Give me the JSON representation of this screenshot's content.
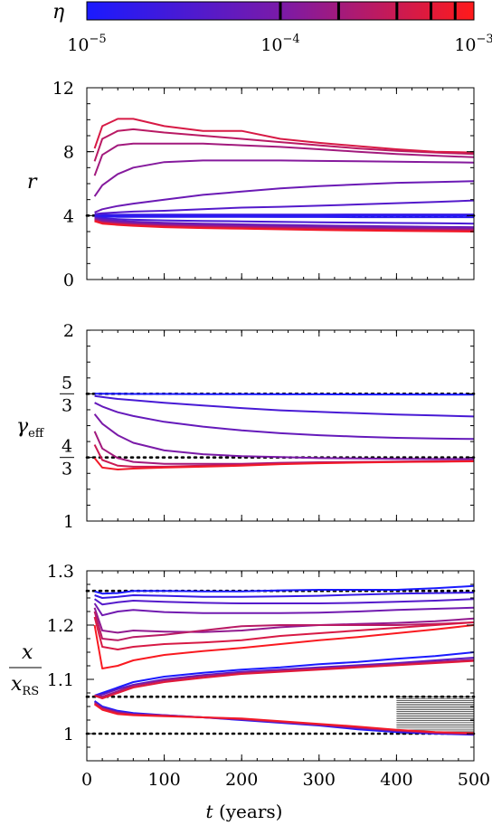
{
  "colorbar": {
    "symbol": "η",
    "scale": "log",
    "range": [
      1e-05,
      0.001
    ],
    "tick_marks": [
      0.0001,
      0.0002,
      0.0004,
      0.0006,
      0.0008
    ],
    "tick_labels": [
      {
        "base": "10",
        "exp": "−5",
        "value": 1e-05
      },
      {
        "base": "10",
        "exp": "−4",
        "value": 0.0001
      },
      {
        "base": "10",
        "exp": "−3",
        "value": 0.001
      }
    ],
    "color_low": "#1a1aff",
    "color_mid": "#7a1aa8",
    "color_high": "#ff1a1a"
  },
  "xaxis": {
    "label_var": "t",
    "label_unit": "(years)",
    "range": [
      0,
      500
    ],
    "ticks": [
      0,
      100,
      200,
      300,
      400,
      500
    ]
  },
  "chart_data": [
    {
      "type": "line",
      "id": "r",
      "ylabel": "r",
      "ylim": [
        0,
        12
      ],
      "yticks": [
        {
          "value": 0,
          "label": "0"
        },
        {
          "value": 4,
          "label": "4"
        },
        {
          "value": 8,
          "label": "8"
        },
        {
          "value": 12,
          "label": "12"
        }
      ],
      "reference_lines": [
        4
      ],
      "x": [
        10,
        20,
        40,
        60,
        100,
        150,
        200,
        250,
        300,
        350,
        400,
        450,
        500
      ],
      "series": [
        {
          "eta": 1e-05,
          "values": [
            4.0,
            4.0,
            4.0,
            4.0,
            4.0,
            4.0,
            4.0,
            4.0,
            4.0,
            4.0,
            4.0,
            4.0,
            4.0
          ]
        },
        {
          "eta": 2e-05,
          "values": [
            4.02,
            4.05,
            4.05,
            4.06,
            4.06,
            4.06,
            4.06,
            4.06,
            4.06,
            4.07,
            4.07,
            4.07,
            4.07
          ]
        },
        {
          "eta": 4e-05,
          "values": [
            4.1,
            4.15,
            4.2,
            4.25,
            4.3,
            4.4,
            4.5,
            4.55,
            4.62,
            4.7,
            4.78,
            4.85,
            4.95
          ]
        },
        {
          "eta": 7e-05,
          "values": [
            4.2,
            4.4,
            4.6,
            4.75,
            5.0,
            5.3,
            5.5,
            5.7,
            5.85,
            5.95,
            6.05,
            6.1,
            6.15
          ]
        },
        {
          "eta": 0.00012,
          "values": [
            5.2,
            5.9,
            6.6,
            7.0,
            7.35,
            7.45,
            7.45,
            7.45,
            7.42,
            7.4,
            7.37,
            7.35,
            7.32
          ]
        },
        {
          "eta": 0.0002,
          "values": [
            6.5,
            7.8,
            8.4,
            8.5,
            8.5,
            8.5,
            8.4,
            8.3,
            8.15,
            8.0,
            7.85,
            7.75,
            7.65
          ]
        },
        {
          "eta": 0.0003,
          "values": [
            7.4,
            8.8,
            9.3,
            9.4,
            9.2,
            9.0,
            8.8,
            8.6,
            8.4,
            8.2,
            8.05,
            7.95,
            7.85
          ]
        },
        {
          "eta": 0.0005,
          "values": [
            8.2,
            9.6,
            10.05,
            10.05,
            9.6,
            9.3,
            9.3,
            8.8,
            8.55,
            8.35,
            8.15,
            8.0,
            7.95
          ]
        },
        {
          "eta": 1.5e-05,
          "values": [
            3.95,
            3.93,
            3.92,
            3.92,
            3.92,
            3.92,
            3.92,
            3.91,
            3.91,
            3.9,
            3.9,
            3.9,
            3.9
          ]
        },
        {
          "eta": 3e-05,
          "values": [
            3.9,
            3.83,
            3.78,
            3.74,
            3.7,
            3.67,
            3.64,
            3.61,
            3.58,
            3.56,
            3.54,
            3.52,
            3.5
          ]
        },
        {
          "eta": 6e-05,
          "values": [
            3.85,
            3.75,
            3.68,
            3.62,
            3.55,
            3.5,
            3.45,
            3.42,
            3.38,
            3.35,
            3.32,
            3.3,
            3.28
          ]
        },
        {
          "eta": 0.0001,
          "values": [
            3.8,
            3.68,
            3.6,
            3.53,
            3.46,
            3.41,
            3.37,
            3.33,
            3.3,
            3.27,
            3.24,
            3.22,
            3.2
          ]
        },
        {
          "eta": 0.0002,
          "values": [
            3.75,
            3.6,
            3.52,
            3.46,
            3.38,
            3.33,
            3.29,
            3.25,
            3.22,
            3.19,
            3.16,
            3.14,
            3.12
          ]
        },
        {
          "eta": 0.0004,
          "values": [
            3.7,
            3.55,
            3.46,
            3.4,
            3.32,
            3.27,
            3.22,
            3.19,
            3.15,
            3.12,
            3.09,
            3.07,
            3.05
          ]
        },
        {
          "eta": 0.0008,
          "values": [
            3.65,
            3.5,
            3.42,
            3.36,
            3.28,
            3.22,
            3.18,
            3.14,
            3.1,
            3.07,
            3.04,
            3.02,
            3.0
          ]
        }
      ]
    },
    {
      "type": "line",
      "id": "gamma",
      "ylabel_main": "γ",
      "ylabel_sub": "eff",
      "ylim": [
        1,
        2
      ],
      "yticks": [
        {
          "value": 1,
          "label": "1"
        },
        {
          "value": 1.3333,
          "frac": [
            "4",
            "3"
          ]
        },
        {
          "value": 1.6667,
          "frac": [
            "5",
            "3"
          ]
        },
        {
          "value": 2,
          "label": "2"
        }
      ],
      "reference_lines": [
        1.6667,
        1.3333
      ],
      "x": [
        10,
        20,
        40,
        60,
        100,
        150,
        200,
        250,
        300,
        350,
        400,
        450,
        500
      ],
      "series": [
        {
          "eta": 1e-05,
          "values": [
            1.667,
            1.667,
            1.667,
            1.666,
            1.666,
            1.665,
            1.665,
            1.664,
            1.664,
            1.663,
            1.663,
            1.662,
            1.662
          ]
        },
        {
          "eta": 3e-05,
          "values": [
            1.655,
            1.65,
            1.64,
            1.633,
            1.62,
            1.605,
            1.592,
            1.58,
            1.572,
            1.565,
            1.558,
            1.553,
            1.548
          ]
        },
        {
          "eta": 6e-05,
          "values": [
            1.62,
            1.6,
            1.57,
            1.55,
            1.52,
            1.495,
            1.475,
            1.46,
            1.45,
            1.442,
            1.436,
            1.432,
            1.43
          ]
        },
        {
          "eta": 0.0001,
          "values": [
            1.56,
            1.51,
            1.45,
            1.41,
            1.37,
            1.35,
            1.34,
            1.335,
            1.33,
            1.328,
            1.326,
            1.325,
            1.325
          ]
        },
        {
          "eta": 0.0002,
          "values": [
            1.47,
            1.38,
            1.33,
            1.31,
            1.3,
            1.3,
            1.3,
            1.305,
            1.308,
            1.31,
            1.312,
            1.314,
            1.316
          ]
        },
        {
          "eta": 0.0004,
          "values": [
            1.4,
            1.32,
            1.29,
            1.285,
            1.285,
            1.29,
            1.295,
            1.3,
            1.305,
            1.308,
            1.31,
            1.312,
            1.314
          ]
        },
        {
          "eta": 0.0008,
          "values": [
            1.33,
            1.28,
            1.27,
            1.275,
            1.28,
            1.285,
            1.29,
            1.298,
            1.303,
            1.306,
            1.309,
            1.311,
            1.313
          ]
        }
      ]
    },
    {
      "type": "line",
      "id": "xratio",
      "ylabel_num": "x",
      "ylabel_den": "x",
      "ylabel_den_sub": "RS",
      "ylim": [
        0.95,
        1.3
      ],
      "yticks": [
        {
          "value": 1,
          "label": "1"
        },
        {
          "value": 1.1,
          "label": "1.1"
        },
        {
          "value": 1.2,
          "label": "1.2"
        },
        {
          "value": 1.3,
          "label": "1.3"
        }
      ],
      "reference_lines": [
        1.263,
        1.068,
        1.0
      ],
      "x": [
        10,
        20,
        40,
        60,
        100,
        150,
        200,
        250,
        300,
        350,
        400,
        450,
        500
      ],
      "series": [
        {
          "eta": 1e-05,
          "values": [
            1.262,
            1.258,
            1.259,
            1.263,
            1.263,
            1.262,
            1.262,
            1.264,
            1.265,
            1.265,
            1.265,
            1.268,
            1.272
          ]
        },
        {
          "eta": 2e-05,
          "values": [
            1.255,
            1.25,
            1.252,
            1.255,
            1.254,
            1.252,
            1.252,
            1.253,
            1.254,
            1.256,
            1.258,
            1.259,
            1.26
          ]
        },
        {
          "eta": 4e-05,
          "values": [
            1.248,
            1.238,
            1.242,
            1.245,
            1.243,
            1.241,
            1.24,
            1.24,
            1.24,
            1.241,
            1.243,
            1.245,
            1.248
          ]
        },
        {
          "eta": 8e-05,
          "values": [
            1.24,
            1.218,
            1.225,
            1.228,
            1.224,
            1.222,
            1.222,
            1.222,
            1.223,
            1.225,
            1.228,
            1.23,
            1.232
          ]
        },
        {
          "eta": 0.00015,
          "values": [
            1.232,
            1.19,
            1.186,
            1.19,
            1.188,
            1.187,
            1.19,
            1.196,
            1.2,
            1.202,
            1.204,
            1.207,
            1.212
          ]
        },
        {
          "eta": 0.0003,
          "values": [
            1.225,
            1.175,
            1.172,
            1.178,
            1.182,
            1.19,
            1.198,
            1.2,
            1.2,
            1.2,
            1.2,
            1.202,
            1.205
          ]
        },
        {
          "eta": 0.0005,
          "values": [
            1.215,
            1.16,
            1.155,
            1.16,
            1.165,
            1.168,
            1.172,
            1.18,
            1.185,
            1.19,
            1.195,
            1.2,
            1.205
          ]
        },
        {
          "eta": 0.0009,
          "values": [
            1.2,
            1.12,
            1.125,
            1.135,
            1.145,
            1.152,
            1.158,
            1.165,
            1.172,
            1.178,
            1.185,
            1.192,
            1.2
          ]
        },
        {
          "eta": 1e-05,
          "values": [
            1.07,
            1.075,
            1.085,
            1.095,
            1.105,
            1.112,
            1.118,
            1.122,
            1.128,
            1.132,
            1.138,
            1.143,
            1.15
          ]
        },
        {
          "eta": 5e-05,
          "values": [
            1.07,
            1.072,
            1.082,
            1.09,
            1.1,
            1.108,
            1.114,
            1.118,
            1.122,
            1.126,
            1.13,
            1.135,
            1.14
          ]
        },
        {
          "eta": 0.0002,
          "values": [
            1.07,
            1.068,
            1.078,
            1.088,
            1.098,
            1.106,
            1.112,
            1.116,
            1.12,
            1.124,
            1.128,
            1.132,
            1.136
          ]
        },
        {
          "eta": 0.0006,
          "values": [
            1.07,
            1.065,
            1.075,
            1.085,
            1.095,
            1.103,
            1.11,
            1.114,
            1.118,
            1.122,
            1.126,
            1.13,
            1.134
          ]
        },
        {
          "eta": 1e-05,
          "values": [
            1.06,
            1.05,
            1.042,
            1.038,
            1.034,
            1.03,
            1.025,
            1.02,
            1.015,
            1.008,
            1.003,
            1.0,
            0.998
          ]
        },
        {
          "eta": 8e-05,
          "values": [
            1.058,
            1.048,
            1.04,
            1.036,
            1.034,
            1.03,
            1.026,
            1.021,
            1.016,
            1.01,
            1.005,
            1.001,
            0.999
          ]
        },
        {
          "eta": 0.0003,
          "values": [
            1.056,
            1.046,
            1.038,
            1.035,
            1.033,
            1.03,
            1.027,
            1.022,
            1.017,
            1.012,
            1.006,
            1.002,
            1.0
          ]
        },
        {
          "eta": 0.0008,
          "values": [
            1.054,
            1.044,
            1.036,
            1.034,
            1.032,
            1.03,
            1.028,
            1.023,
            1.018,
            1.013,
            1.007,
            1.003,
            1.001
          ]
        }
      ],
      "hatch": {
        "from": 1.0,
        "to": 1.068,
        "count": 20,
        "x_from": 400,
        "x_to": 500
      }
    }
  ]
}
